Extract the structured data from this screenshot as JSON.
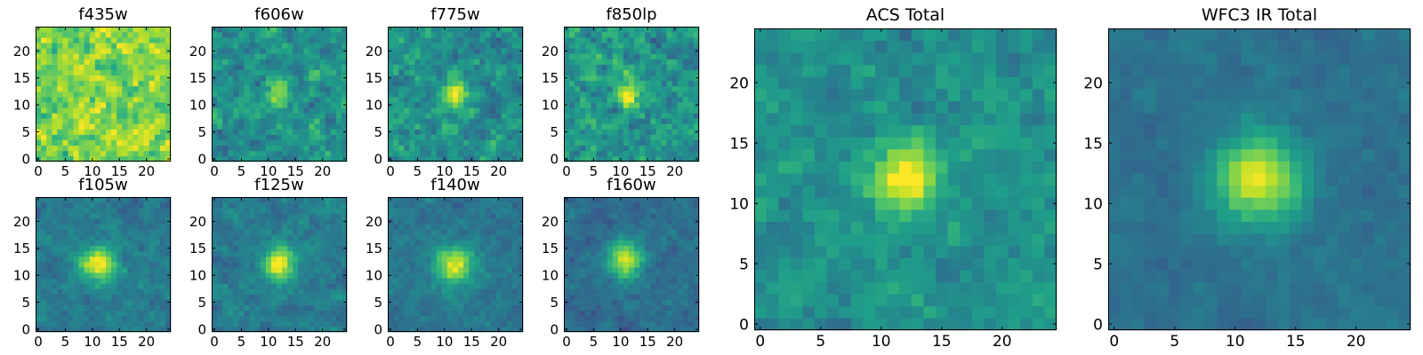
{
  "figure": {
    "colormap_low": "#440154",
    "colormap_mid": "#21918c",
    "colormap_high": "#fde725",
    "frame_color": "#000000"
  },
  "chart_data": [
    {
      "type": "heatmap",
      "title": "f435w",
      "xlim": [
        -0.5,
        24.5
      ],
      "ylim": [
        -0.5,
        24.5
      ],
      "xticks": [
        0,
        5,
        10,
        15,
        20
      ],
      "yticks": [
        0,
        5,
        10,
        15,
        20
      ],
      "grid_size": 25,
      "source_peak": [
        12,
        12
      ],
      "source_strength": 0.0,
      "source_sigma": 2.0,
      "background_level": 0.8,
      "noise_level": 0.25,
      "seed": 11
    },
    {
      "type": "heatmap",
      "title": "f606w",
      "xlim": [
        -0.5,
        24.5
      ],
      "ylim": [
        -0.5,
        24.5
      ],
      "xticks": [
        0,
        5,
        10,
        15,
        20
      ],
      "yticks": [
        0,
        5,
        10,
        15,
        20
      ],
      "grid_size": 25,
      "source_peak": [
        12,
        12
      ],
      "source_strength": 0.38,
      "source_sigma": 1.8,
      "background_level": 0.5,
      "noise_level": 0.22,
      "seed": 23
    },
    {
      "type": "heatmap",
      "title": "f775w",
      "xlim": [
        -0.5,
        24.5
      ],
      "ylim": [
        -0.5,
        24.5
      ],
      "xticks": [
        0,
        5,
        10,
        15,
        20
      ],
      "yticks": [
        0,
        5,
        10,
        15,
        20
      ],
      "grid_size": 25,
      "source_peak": [
        12,
        12
      ],
      "source_strength": 0.48,
      "source_sigma": 1.7,
      "background_level": 0.5,
      "noise_level": 0.22,
      "seed": 37
    },
    {
      "type": "heatmap",
      "title": "f850lp",
      "xlim": [
        -0.5,
        24.5
      ],
      "ylim": [
        -0.5,
        24.5
      ],
      "xticks": [
        0,
        5,
        10,
        15,
        20
      ],
      "yticks": [
        0,
        5,
        10,
        15,
        20
      ],
      "grid_size": 25,
      "source_peak": [
        11,
        12
      ],
      "source_strength": 0.42,
      "source_sigma": 1.7,
      "background_level": 0.52,
      "noise_level": 0.24,
      "seed": 41
    },
    {
      "type": "heatmap",
      "title": "f105w",
      "xlim": [
        -0.5,
        24.5
      ],
      "ylim": [
        -0.5,
        24.5
      ],
      "xticks": [
        0,
        5,
        10,
        15,
        20
      ],
      "yticks": [
        0,
        5,
        10,
        15,
        20
      ],
      "grid_size": 25,
      "source_peak": [
        11,
        12
      ],
      "source_strength": 0.55,
      "source_sigma": 2.3,
      "background_level": 0.42,
      "noise_level": 0.13,
      "seed": 53
    },
    {
      "type": "heatmap",
      "title": "f125w",
      "xlim": [
        -0.5,
        24.5
      ],
      "ylim": [
        -0.5,
        24.5
      ],
      "xticks": [
        0,
        5,
        10,
        15,
        20
      ],
      "yticks": [
        0,
        5,
        10,
        15,
        20
      ],
      "grid_size": 25,
      "source_peak": [
        12,
        12
      ],
      "source_strength": 0.55,
      "source_sigma": 2.3,
      "background_level": 0.42,
      "noise_level": 0.14,
      "seed": 67
    },
    {
      "type": "heatmap",
      "title": "f140w",
      "xlim": [
        -0.5,
        24.5
      ],
      "ylim": [
        -0.5,
        24.5
      ],
      "xticks": [
        0,
        5,
        10,
        15,
        20
      ],
      "yticks": [
        0,
        5,
        10,
        15,
        20
      ],
      "grid_size": 25,
      "source_peak": [
        12,
        12
      ],
      "source_strength": 0.55,
      "source_sigma": 2.4,
      "background_level": 0.4,
      "noise_level": 0.12,
      "seed": 79
    },
    {
      "type": "heatmap",
      "title": "f160w",
      "xlim": [
        -0.5,
        24.5
      ],
      "ylim": [
        -0.5,
        24.5
      ],
      "xticks": [
        0,
        5,
        10,
        15,
        20
      ],
      "yticks": [
        0,
        5,
        10,
        15,
        20
      ],
      "grid_size": 25,
      "source_peak": [
        11,
        13
      ],
      "source_strength": 0.58,
      "source_sigma": 2.4,
      "background_level": 0.36,
      "noise_level": 0.12,
      "seed": 83
    },
    {
      "type": "heatmap",
      "title": "ACS Total",
      "xlim": [
        -0.5,
        24.5
      ],
      "ylim": [
        -0.5,
        24.5
      ],
      "xticks": [
        0,
        5,
        10,
        15,
        20
      ],
      "yticks": [
        0,
        5,
        10,
        15,
        20
      ],
      "grid_size": 25,
      "source_peak": [
        12,
        12
      ],
      "source_strength": 0.52,
      "source_sigma": 1.9,
      "background_level": 0.5,
      "noise_level": 0.15,
      "seed": 97
    },
    {
      "type": "heatmap",
      "title": "WFC3 IR Total",
      "xlim": [
        -0.5,
        24.5
      ],
      "ylim": [
        -0.5,
        24.5
      ],
      "xticks": [
        0,
        5,
        10,
        15,
        20
      ],
      "yticks": [
        0,
        5,
        10,
        15,
        20
      ],
      "grid_size": 25,
      "source_peak": [
        12,
        12
      ],
      "source_strength": 0.58,
      "source_sigma": 2.5,
      "background_level": 0.38,
      "noise_level": 0.08,
      "seed": 101
    }
  ]
}
